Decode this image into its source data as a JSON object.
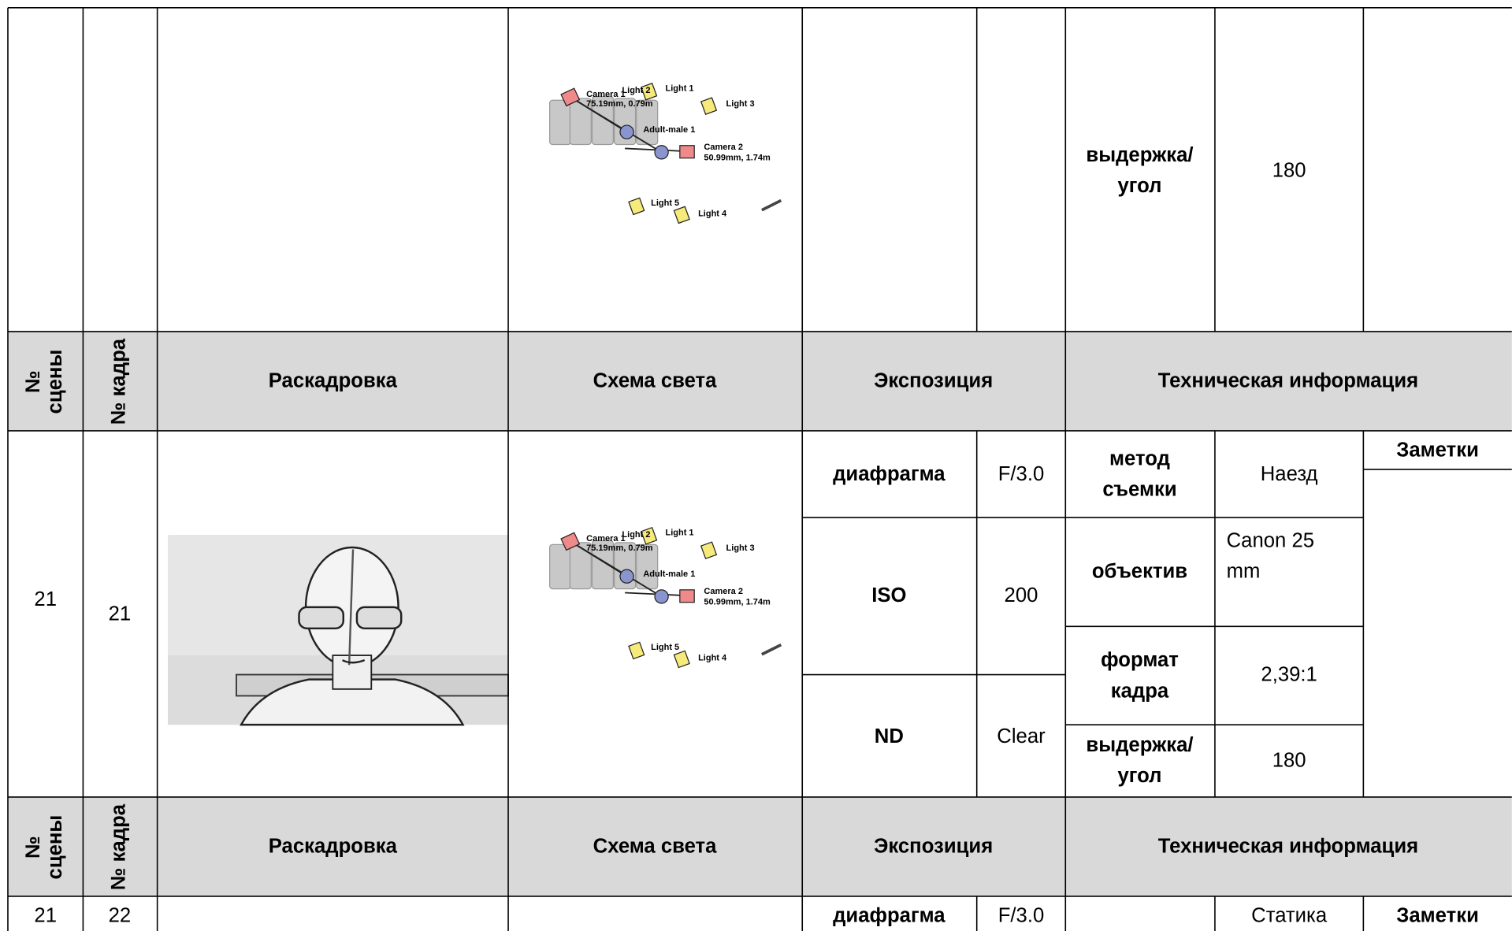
{
  "header": {
    "scene_no": [
      "№",
      "сцены"
    ],
    "shot_no": "№ кадра",
    "storyboard": "Раскадровка",
    "light_scheme": "Схема света",
    "exposure": "Экспозиция",
    "tech_info": "Техническая информация"
  },
  "light_scheme_labels": {
    "camera_1": "Camera 1",
    "camera_1_info": "75.19mm, 0.79m",
    "light_1": "Light 1",
    "light_2": "Light 2",
    "light_3": "Light 3",
    "light_4": "Light 4",
    "light_5": "Light 5",
    "actor": "Adult-male 1",
    "camera_2": "Camera 2",
    "camera_2_info": "50.99mm, 1.74m"
  },
  "rows": [
    {
      "shutter_label": [
        "выдержка/",
        "угол"
      ],
      "shutter": 180
    },
    {
      "scene": 21,
      "shot": 21,
      "aperture_label": "диафрагма",
      "aperture": "F/3.0",
      "iso_label": "ISO",
      "iso": 200,
      "nd_label": "ND",
      "nd": "Clear",
      "method_label": [
        "метод",
        "съемки"
      ],
      "method": "Наезд",
      "lens_label": "объектив",
      "lens": [
        "Canon 25",
        "mm"
      ],
      "format_label": [
        "формат",
        "кадра"
      ],
      "format": "2,39:1",
      "shutter_label": [
        "выдержка/",
        "угол"
      ],
      "shutter": 180,
      "notes_label": "Заметки"
    },
    {
      "scene": 21,
      "shot": 22,
      "aperture_label": "диафрагма",
      "aperture": "F/3.0",
      "method": "Статика",
      "notes_label": "Заметки"
    }
  ]
}
